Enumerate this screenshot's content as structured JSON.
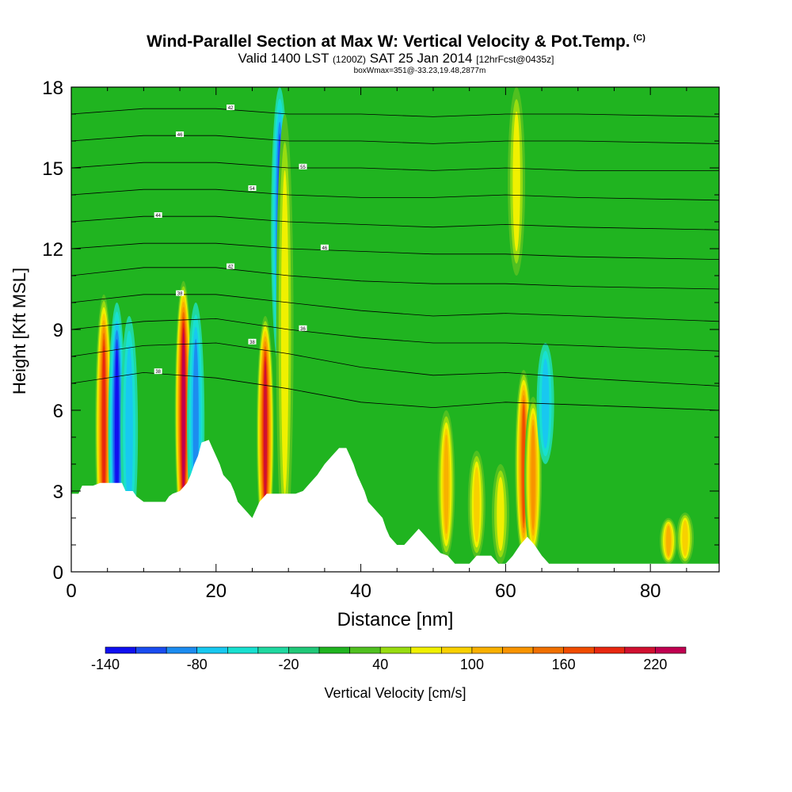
{
  "header": {
    "title": "Wind-Parallel Section at Max W: Vertical Velocity & Pot.Temp.",
    "title_mark": "(C)",
    "valid_prefix": "Valid 1400 LST",
    "valid_utc": "(1200Z)",
    "valid_date": "SAT 25 Jan 2014",
    "forecast": "[12hrFcst@0435z]",
    "box_info": "boxWmax=351@-33.23,19.48,2877m"
  },
  "chart_data": {
    "type": "heatmap",
    "xlabel": "Distance [nm]",
    "ylabel": "Height [Kft MSL]",
    "xlim": [
      0,
      89.5
    ],
    "ylim": [
      0,
      18
    ],
    "x_ticks": [
      0,
      20,
      40,
      60,
      80
    ],
    "x_tick_labels": [
      "0",
      "20",
      "40",
      "60",
      "80"
    ],
    "y_ticks": [
      0,
      3,
      6,
      9,
      12,
      15,
      18
    ],
    "y_tick_labels": [
      "0",
      "3",
      "6",
      "9",
      "12",
      "15",
      "18"
    ],
    "grid": false,
    "colorbar": {
      "label": "Vertical Velocity [cm/s]",
      "placement": "bottom",
      "levels": [
        -140,
        -120,
        -100,
        -80,
        -60,
        -40,
        -20,
        0,
        20,
        40,
        60,
        80,
        100,
        120,
        140,
        160,
        180,
        200,
        220,
        240
      ],
      "tick_values": [
        -140,
        -80,
        -20,
        40,
        100,
        160,
        220
      ],
      "tick_labels": [
        "-140",
        "-80",
        "-20",
        "40",
        "100",
        "160",
        "220"
      ],
      "colors": [
        "#1010f0",
        "#1a4cf0",
        "#1c8cf0",
        "#18c8f0",
        "#18e0d0",
        "#20d8a0",
        "#20c878",
        "#20b420",
        "#50c020",
        "#98dc10",
        "#f0f000",
        "#f8d000",
        "#f8b000",
        "#f89400",
        "#f07000",
        "#f04c00",
        "#e82810",
        "#d01030",
        "#c00050"
      ]
    },
    "background_color": "#20b420",
    "terrain": [
      [
        0,
        2.9
      ],
      [
        1,
        2.9
      ],
      [
        1.5,
        3.2
      ],
      [
        3,
        3.2
      ],
      [
        4,
        3.3
      ],
      [
        5,
        3.3
      ],
      [
        6,
        3.3
      ],
      [
        7,
        3.3
      ],
      [
        7.5,
        3.0
      ],
      [
        8,
        3.0
      ],
      [
        8.5,
        3.0
      ],
      [
        9,
        2.8
      ],
      [
        10,
        2.6
      ],
      [
        11,
        2.6
      ],
      [
        12,
        2.6
      ],
      [
        13,
        2.6
      ],
      [
        13.5,
        2.8
      ],
      [
        14,
        2.9
      ],
      [
        15,
        3.0
      ],
      [
        16,
        3.3
      ],
      [
        16.5,
        3.6
      ],
      [
        17,
        4.0
      ],
      [
        17.5,
        4.3
      ],
      [
        18,
        4.8
      ],
      [
        19,
        4.9
      ],
      [
        19.5,
        4.6
      ],
      [
        20,
        4.3
      ],
      [
        20.5,
        4.0
      ],
      [
        21,
        3.6
      ],
      [
        22,
        3.3
      ],
      [
        22.5,
        3.0
      ],
      [
        23,
        2.6
      ],
      [
        24,
        2.3
      ],
      [
        25,
        2.0
      ],
      [
        25.5,
        2.3
      ],
      [
        26,
        2.6
      ],
      [
        27,
        2.9
      ],
      [
        28,
        2.9
      ],
      [
        29,
        2.9
      ],
      [
        30,
        2.9
      ],
      [
        31,
        2.9
      ],
      [
        32,
        3.0
      ],
      [
        33,
        3.3
      ],
      [
        34,
        3.6
      ],
      [
        35,
        4.0
      ],
      [
        36,
        4.3
      ],
      [
        37,
        4.6
      ],
      [
        38,
        4.6
      ],
      [
        38.5,
        4.3
      ],
      [
        39,
        4.0
      ],
      [
        39.5,
        3.6
      ],
      [
        40,
        3.3
      ],
      [
        40.5,
        3.0
      ],
      [
        41,
        2.6
      ],
      [
        42,
        2.3
      ],
      [
        43,
        2.0
      ],
      [
        43.5,
        1.6
      ],
      [
        44,
        1.3
      ],
      [
        45,
        1.0
      ],
      [
        46,
        1.0
      ],
      [
        47,
        1.3
      ],
      [
        48,
        1.6
      ],
      [
        49,
        1.3
      ],
      [
        50,
        1.0
      ],
      [
        51,
        0.7
      ],
      [
        52,
        0.6
      ],
      [
        53,
        0.3
      ],
      [
        54,
        0.3
      ],
      [
        55,
        0.3
      ],
      [
        56,
        0.6
      ],
      [
        57,
        0.6
      ],
      [
        58,
        0.6
      ],
      [
        59,
        0.3
      ],
      [
        60,
        0.3
      ],
      [
        61,
        0.6
      ],
      [
        62,
        1.0
      ],
      [
        63,
        1.3
      ],
      [
        64,
        1.0
      ],
      [
        65,
        0.6
      ],
      [
        66,
        0.3
      ],
      [
        67,
        0.3
      ],
      [
        68,
        0.3
      ],
      [
        69,
        0.3
      ],
      [
        70,
        0.3
      ],
      [
        72,
        0.3
      ],
      [
        74,
        0.3
      ],
      [
        76,
        0.3
      ],
      [
        78,
        0.3
      ],
      [
        80,
        0.3
      ],
      [
        82,
        0.3
      ],
      [
        84,
        0.3
      ],
      [
        86,
        0.3
      ],
      [
        88,
        0.3
      ],
      [
        89.5,
        0.3
      ]
    ],
    "features": [
      {
        "x": 4.5,
        "y1": 0.3,
        "y2": 10.3,
        "w_max": 190
      },
      {
        "x": 6.3,
        "y1": 0.2,
        "y2": 10.0,
        "w_max": -130
      },
      {
        "x": 8.0,
        "y1": 1.0,
        "y2": 9.5,
        "w_max": -70
      },
      {
        "x": 15.5,
        "y1": 1.0,
        "y2": 10.8,
        "w_max": 225
      },
      {
        "x": 17.2,
        "y1": 1.0,
        "y2": 10.0,
        "w_max": -80
      },
      {
        "x": 26.8,
        "y1": 0.8,
        "y2": 9.5,
        "w_max": 210
      },
      {
        "x": 28.8,
        "y1": 7.5,
        "y2": 18.0,
        "w_max": -100
      },
      {
        "x": 29.5,
        "y1": 0.8,
        "y2": 17.0,
        "w_max": 60
      },
      {
        "x": 51.8,
        "y1": 0.5,
        "y2": 6.0,
        "w_max": 110
      },
      {
        "x": 56.0,
        "y1": 0.5,
        "y2": 4.5,
        "w_max": 80
      },
      {
        "x": 59.3,
        "y1": 0.3,
        "y2": 4.0,
        "w_max": 70
      },
      {
        "x": 62.5,
        "y1": 0.5,
        "y2": 7.5,
        "w_max": 170
      },
      {
        "x": 63.8,
        "y1": 0.5,
        "y2": 6.5,
        "w_max": 130
      },
      {
        "x": 65.5,
        "y1": 4.0,
        "y2": 8.5,
        "w_max": -60
      },
      {
        "x": 61.5,
        "y1": 11.0,
        "y2": 18.0,
        "w_max": 60
      },
      {
        "x": 82.5,
        "y1": 0.3,
        "y2": 2.0,
        "w_max": 100
      },
      {
        "x": 84.8,
        "y1": 0.3,
        "y2": 2.2,
        "w_max": 80
      }
    ],
    "theta_contours": [
      {
        "label": "38",
        "pts": [
          [
            0,
            7.0
          ],
          [
            10,
            7.4
          ],
          [
            20,
            7.2
          ],
          [
            30,
            6.8
          ],
          [
            40,
            6.3
          ],
          [
            50,
            6.1
          ],
          [
            60,
            6.3
          ],
          [
            70,
            6.2
          ],
          [
            89.5,
            6.0
          ]
        ]
      },
      {
        "label": "38",
        "pts": [
          [
            0,
            8.0
          ],
          [
            10,
            8.4
          ],
          [
            20,
            8.5
          ],
          [
            30,
            8.1
          ],
          [
            40,
            7.6
          ],
          [
            50,
            7.3
          ],
          [
            60,
            7.4
          ],
          [
            70,
            7.2
          ],
          [
            89.5,
            6.9
          ]
        ]
      },
      {
        "label": "36",
        "pts": [
          [
            0,
            9.0
          ],
          [
            10,
            9.3
          ],
          [
            20,
            9.4
          ],
          [
            30,
            9.0
          ],
          [
            40,
            8.7
          ],
          [
            50,
            8.5
          ],
          [
            60,
            8.5
          ],
          [
            70,
            8.4
          ],
          [
            89.5,
            8.2
          ]
        ]
      },
      {
        "label": "38",
        "pts": [
          [
            0,
            10.0
          ],
          [
            10,
            10.3
          ],
          [
            20,
            10.3
          ],
          [
            30,
            10.0
          ],
          [
            40,
            9.7
          ],
          [
            50,
            9.5
          ],
          [
            60,
            9.6
          ],
          [
            70,
            9.5
          ],
          [
            89.5,
            9.3
          ]
        ]
      },
      {
        "label": "42",
        "pts": [
          [
            0,
            11.0
          ],
          [
            10,
            11.3
          ],
          [
            20,
            11.3
          ],
          [
            30,
            11.0
          ],
          [
            40,
            10.8
          ],
          [
            50,
            10.7
          ],
          [
            60,
            10.7
          ],
          [
            70,
            10.6
          ],
          [
            89.5,
            10.5
          ]
        ]
      },
      {
        "label": "46",
        "pts": [
          [
            0,
            12.0
          ],
          [
            10,
            12.2
          ],
          [
            20,
            12.2
          ],
          [
            30,
            12.0
          ],
          [
            40,
            11.9
          ],
          [
            50,
            11.8
          ],
          [
            60,
            11.8
          ],
          [
            70,
            11.7
          ],
          [
            89.5,
            11.6
          ]
        ]
      },
      {
        "label": "44",
        "pts": [
          [
            0,
            13.0
          ],
          [
            10,
            13.2
          ],
          [
            20,
            13.2
          ],
          [
            30,
            13.0
          ],
          [
            40,
            12.9
          ],
          [
            50,
            12.8
          ],
          [
            60,
            12.9
          ],
          [
            70,
            12.8
          ],
          [
            89.5,
            12.7
          ]
        ]
      },
      {
        "label": "54",
        "pts": [
          [
            0,
            14.0
          ],
          [
            10,
            14.2
          ],
          [
            20,
            14.2
          ],
          [
            30,
            14.0
          ],
          [
            40,
            13.9
          ],
          [
            50,
            13.9
          ],
          [
            60,
            14.0
          ],
          [
            70,
            13.9
          ],
          [
            89.5,
            13.8
          ]
        ]
      },
      {
        "label": "55",
        "pts": [
          [
            0,
            15.0
          ],
          [
            10,
            15.2
          ],
          [
            20,
            15.2
          ],
          [
            30,
            15.0
          ],
          [
            40,
            15.0
          ],
          [
            50,
            14.9
          ],
          [
            60,
            15.0
          ],
          [
            70,
            14.9
          ],
          [
            89.5,
            14.9
          ]
        ]
      },
      {
        "label": "46",
        "pts": [
          [
            0,
            16.0
          ],
          [
            10,
            16.2
          ],
          [
            20,
            16.2
          ],
          [
            30,
            16.0
          ],
          [
            40,
            16.0
          ],
          [
            50,
            15.9
          ],
          [
            60,
            16.0
          ],
          [
            70,
            16.0
          ],
          [
            89.5,
            15.9
          ]
        ]
      },
      {
        "label": "42",
        "pts": [
          [
            0,
            17.0
          ],
          [
            10,
            17.2
          ],
          [
            20,
            17.2
          ],
          [
            30,
            17.0
          ],
          [
            40,
            17.0
          ],
          [
            50,
            16.9
          ],
          [
            60,
            17.0
          ],
          [
            70,
            17.0
          ],
          [
            89.5,
            16.9
          ]
        ]
      }
    ]
  }
}
